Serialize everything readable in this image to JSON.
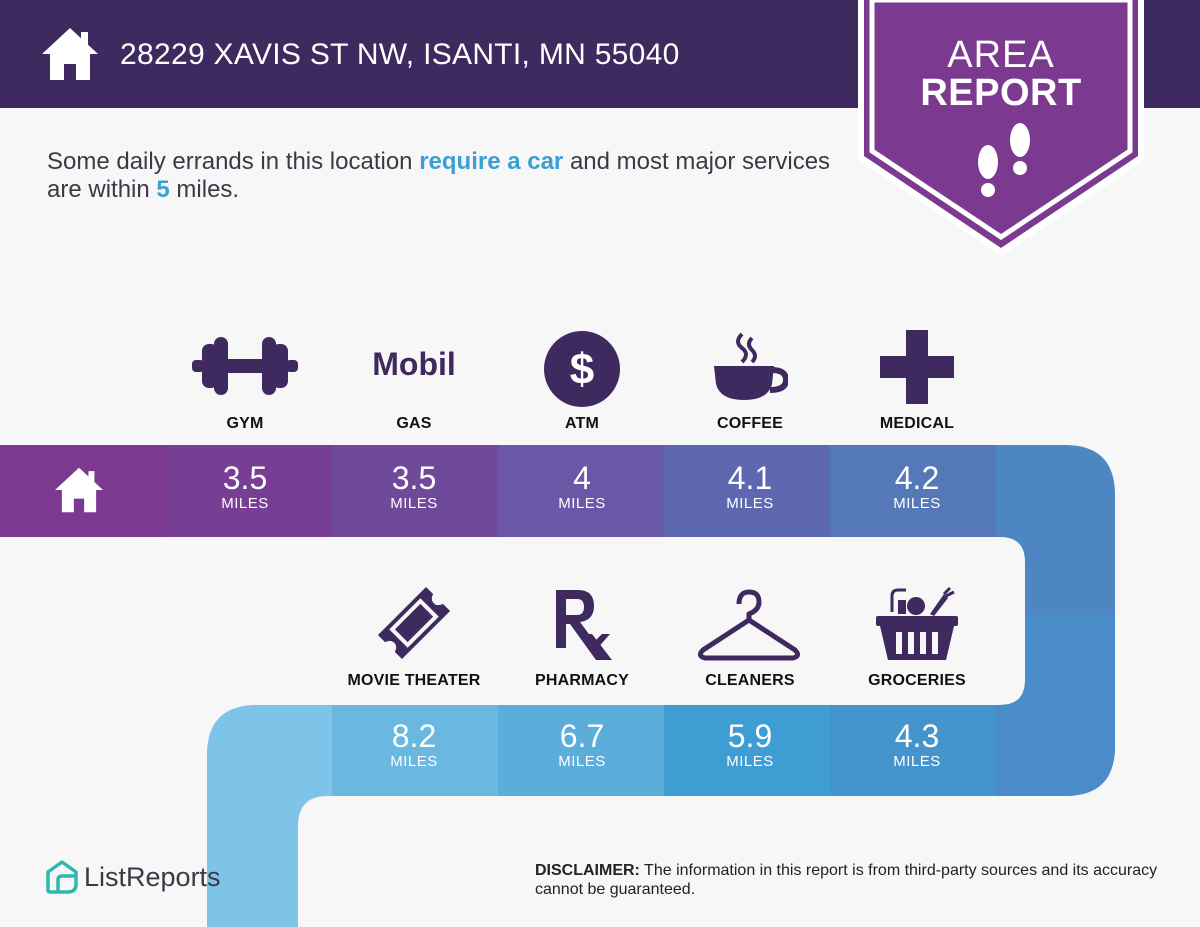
{
  "header": {
    "address": "28229 XAVIS ST NW, ISANTI, MN 55040",
    "house_icon": "house-icon"
  },
  "badge": {
    "line1": "AREA",
    "line2": "REPORT",
    "icon": "footprints-icon"
  },
  "summary": {
    "part1": "Some daily errands in this location ",
    "highlight1": "require a car",
    "part2": " and most major services are within ",
    "highlight2": "5",
    "part3": " miles."
  },
  "top_row": [
    {
      "label": "GYM",
      "value": "3.5",
      "unit": "MILES",
      "icon": "dumbbell-icon"
    },
    {
      "label": "GAS",
      "value": "3.5",
      "unit": "MILES",
      "icon": "mobil-logo",
      "logo_text": "Mobil"
    },
    {
      "label": "ATM",
      "value": "4",
      "unit": "MILES",
      "icon": "dollar-icon",
      "glyph": "$"
    },
    {
      "label": "COFFEE",
      "value": "4.1",
      "unit": "MILES",
      "icon": "coffee-cup-icon"
    },
    {
      "label": "MEDICAL",
      "value": "4.2",
      "unit": "MILES",
      "icon": "medical-cross-icon"
    }
  ],
  "bottom_row": [
    {
      "label": "MOVIE THEATER",
      "value": "8.2",
      "unit": "MILES",
      "icon": "ticket-icon"
    },
    {
      "label": "PHARMACY",
      "value": "6.7",
      "unit": "MILES",
      "icon": "rx-icon"
    },
    {
      "label": "CLEANERS",
      "value": "5.9",
      "unit": "MILES",
      "icon": "hanger-icon"
    },
    {
      "label": "GROCERIES",
      "value": "4.3",
      "unit": "MILES",
      "icon": "basket-icon"
    }
  ],
  "footer": {
    "brand": "ListReports",
    "disclaimer_label": "DISCLAIMER:",
    "disclaimer_text": " The information in this report is from third-party sources and its accuracy cannot be guaranteed."
  },
  "colors": {
    "header": "#3e2a5e",
    "badge": "#7b3a90",
    "accent": "#3b9fd3",
    "icon": "#3e2a5e"
  }
}
